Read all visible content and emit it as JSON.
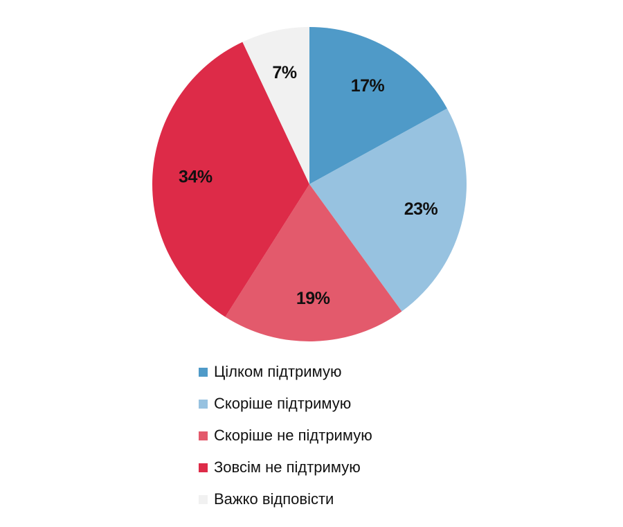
{
  "chart_data": {
    "type": "pie",
    "categories": [
      "Цілком підтримую",
      "Скоріше підтримую",
      "Скоріше не підтримую",
      "Зовсім не підтримую",
      "Важко відповісти"
    ],
    "values": [
      17,
      23,
      19,
      34,
      7
    ],
    "value_labels": [
      "17%",
      "23%",
      "19%",
      "34%",
      "7%"
    ],
    "colors": [
      "#4f9ac8",
      "#97c2e0",
      "#e35a6c",
      "#dd2b48",
      "#f1f1f1"
    ],
    "start_angle": "12 o'clock",
    "direction": "clockwise",
    "legend_position": "bottom",
    "title": ""
  }
}
